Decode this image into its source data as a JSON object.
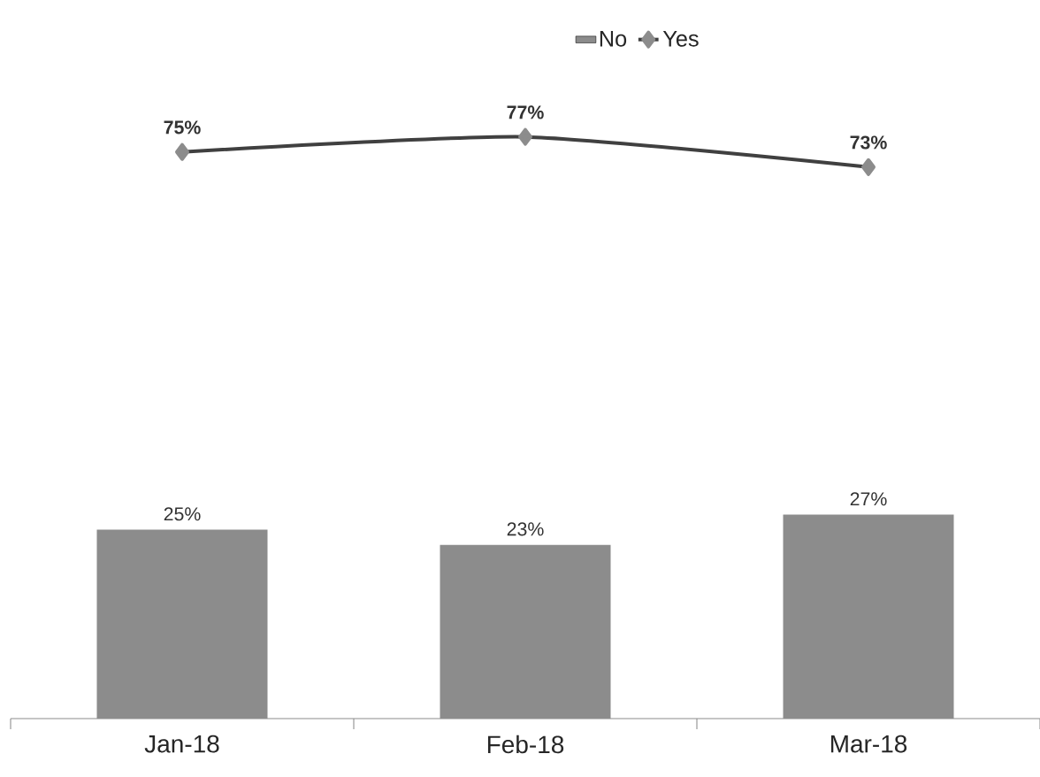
{
  "chart_data": {
    "type": "bar",
    "categories": [
      "Jan-18",
      "Feb-18",
      "Mar-18"
    ],
    "series": [
      {
        "name": "No",
        "color": "#8c8c8c",
        "values": [
          25,
          23,
          27
        ],
        "value_labels": [
          "25%",
          "23%",
          "27%"
        ]
      },
      {
        "name": "Yes",
        "type": "line",
        "color": "#404040",
        "values": [
          75,
          77,
          73
        ],
        "value_labels": [
          "75%",
          "77%",
          "73%"
        ]
      }
    ],
    "marker": "diamond",
    "line_style": "solid",
    "legend": "top"
  }
}
